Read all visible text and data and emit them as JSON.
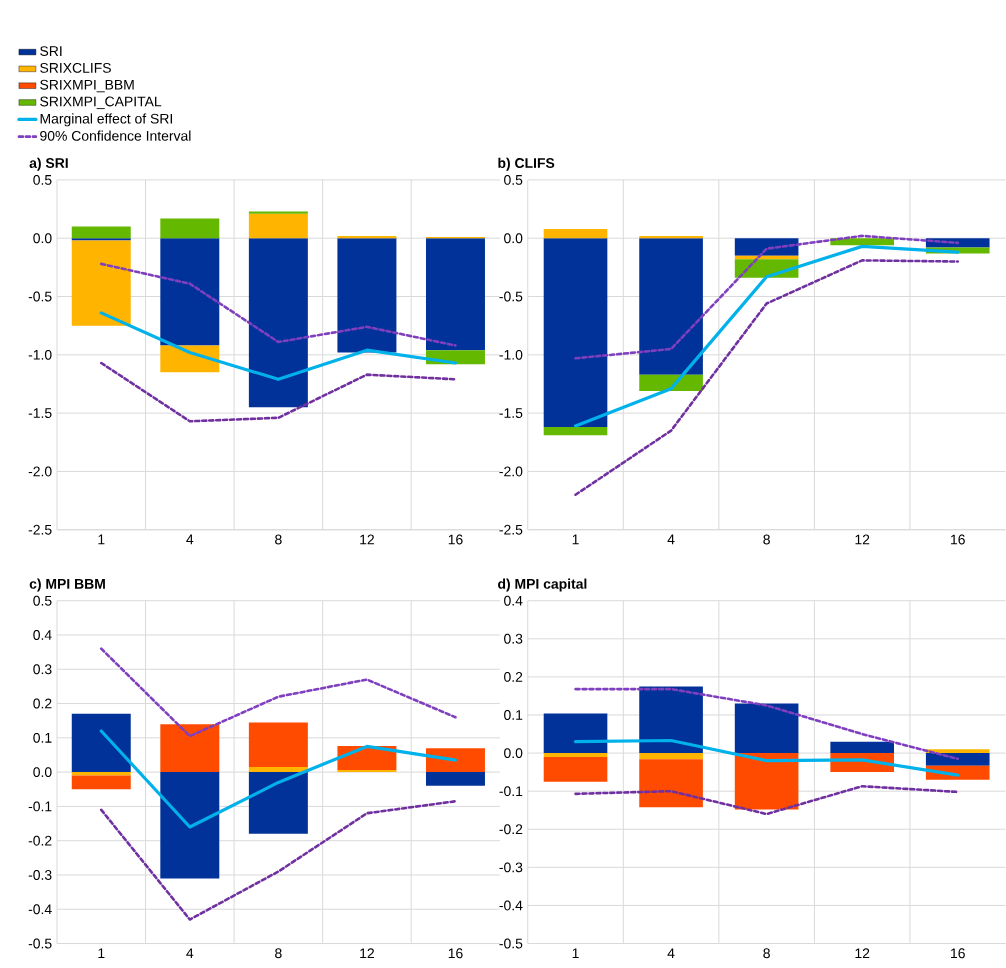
{
  "chart_data": [
    {
      "type": "bar",
      "stacked": true,
      "title": "a) SRI",
      "categories": [
        "1",
        "4",
        "8",
        "12",
        "16"
      ],
      "ylim": [
        -2.5,
        0.5
      ],
      "yticks": [
        {
          "value": 0.5,
          "label": "0.5"
        },
        {
          "value": 0,
          "label": "0.0"
        },
        {
          "value": -0.5,
          "label": "-0.5"
        },
        {
          "value": -1,
          "label": "-1.0"
        },
        {
          "value": -1.5,
          "label": "-1.5"
        },
        {
          "value": -2,
          "label": "-2.0"
        },
        {
          "value": -2.5,
          "label": "-2.5"
        }
      ],
      "grid": true,
      "legend": "top left",
      "series": [
        {
          "name": "SRI",
          "color": "#003299",
          "values": [
            -0.02,
            -0.92,
            -1.45,
            -0.98,
            -0.96
          ]
        },
        {
          "name": "SRIXCLIFS",
          "color": "#ffb400",
          "values": [
            -0.73,
            -0.23,
            0.21,
            0.02,
            0.01
          ]
        },
        {
          "name": "SRIXMPI_BBM",
          "color": "#ff4b00",
          "values": [
            0,
            0,
            0,
            0,
            0
          ]
        },
        {
          "name": "SRIXMPI_CAPITAL",
          "color": "#65b800",
          "values": [
            0.1,
            0.17,
            0.02,
            0,
            -0.12
          ]
        },
        {
          "name": "Marginal effect of SRI",
          "type": "line",
          "color": "#00b1ea",
          "values": [
            -0.64,
            -0.98,
            -1.21,
            -0.96,
            -1.07
          ]
        },
        {
          "name": "90% Confidence Interval",
          "type": "line",
          "line_style": "dashed",
          "color": "#7f3fbf",
          "values": [
            -0.22,
            -0.39,
            -0.89,
            -0.76,
            -0.92
          ]
        },
        {
          "type": "line",
          "line_style": "dashed",
          "color": "#7030a0",
          "values": [
            -1.07,
            -1.57,
            -1.54,
            -1.17,
            -1.21
          ]
        }
      ]
    },
    {
      "type": "bar",
      "stacked": true,
      "title": "b) CLIFS",
      "categories": [
        "1",
        "4",
        "8",
        "12",
        "16"
      ],
      "ylim": [
        -2.5,
        0.5
      ],
      "yticks": [
        {
          "value": 0.5,
          "label": "0.5"
        },
        {
          "value": 0,
          "label": "0.0"
        },
        {
          "value": -0.5,
          "label": "-0.5"
        },
        {
          "value": -1,
          "label": "-1.0"
        },
        {
          "value": -1.5,
          "label": "-1.5"
        },
        {
          "value": -2,
          "label": "-2.0"
        },
        {
          "value": -2.5,
          "label": "-2.5"
        }
      ],
      "grid": true,
      "series": [
        {
          "color": "#003299",
          "values": [
            -1.62,
            -1.17,
            -0.15,
            null,
            -0.08
          ]
        },
        {
          "color": "#ffb400",
          "values": [
            0.08,
            0.02,
            -0.03,
            0,
            0
          ]
        },
        {
          "color": "#65b800",
          "values": [
            -0.07,
            -0.14,
            -0.16,
            -0.06,
            -0.05
          ]
        },
        {
          "type": "line",
          "color": "#00b1ea",
          "values": [
            -1.61,
            -1.29,
            -0.33,
            -0.07,
            -0.12
          ]
        },
        {
          "type": "line",
          "line_style": "dashed",
          "color": "#7f3fbf",
          "values": [
            -1.03,
            -0.95,
            -0.09,
            0.02,
            -0.04
          ]
        },
        {
          "type": "line",
          "line_style": "dashed",
          "color": "#7030a0",
          "values": [
            -2.2,
            -1.65,
            -0.56,
            -0.19,
            -0.2
          ]
        }
      ]
    },
    {
      "type": "bar",
      "stacked": true,
      "title": "c) MPI BBM",
      "categories": [
        "1",
        "4",
        "8",
        "12",
        "16"
      ],
      "ylim": [
        -0.5,
        0.5
      ],
      "yticks": [
        {
          "value": 0.5,
          "label": "0.5"
        },
        {
          "value": 0.4,
          "label": "0.4"
        },
        {
          "value": 0.3,
          "label": "0.3"
        },
        {
          "value": 0.2,
          "label": "0.2"
        },
        {
          "value": 0.1,
          "label": "0.1"
        },
        {
          "value": 0,
          "label": "0.0"
        },
        {
          "value": -0.1,
          "label": "-0.1"
        },
        {
          "value": -0.2,
          "label": "-0.2"
        },
        {
          "value": -0.3,
          "label": "-0.3"
        },
        {
          "value": -0.4,
          "label": "-0.4"
        },
        {
          "value": -0.5,
          "label": "-0.5"
        }
      ],
      "grid": true,
      "series": [
        {
          "color": "#003299",
          "values": [
            0.17,
            -0.31,
            -0.18,
            0,
            -0.04
          ]
        },
        {
          "color": "#ffb400",
          "values": [
            -0.01,
            0,
            0.015,
            0.006,
            0
          ]
        },
        {
          "color": "#ff4b00",
          "values": [
            -0.04,
            0.14,
            0.13,
            0.07,
            0.07
          ]
        },
        {
          "type": "line",
          "color": "#00b1ea",
          "values": [
            0.12,
            -0.16,
            -0.03,
            0.075,
            0.035
          ]
        },
        {
          "type": "line",
          "line_style": "dashed",
          "color": "#7f3fbf",
          "values": [
            0.36,
            0.105,
            0.22,
            0.27,
            0.16
          ]
        },
        {
          "type": "line",
          "line_style": "dashed",
          "color": "#7030a0",
          "values": [
            -0.11,
            -0.43,
            -0.29,
            -0.12,
            -0.085
          ]
        }
      ]
    },
    {
      "type": "bar",
      "stacked": true,
      "title": "d) MPI capital",
      "categories": [
        "1",
        "4",
        "8",
        "12",
        "16"
      ],
      "ylim": [
        -0.5,
        0.4
      ],
      "yticks": [
        {
          "value": 0.4,
          "label": "0.4"
        },
        {
          "value": 0.3,
          "label": "0.3"
        },
        {
          "value": 0.2,
          "label": "0.2"
        },
        {
          "value": 0.1,
          "label": "0.1"
        },
        {
          "value": 0,
          "label": "0.0"
        },
        {
          "value": -0.1,
          "label": "-0.1"
        },
        {
          "value": -0.2,
          "label": "-0.2"
        },
        {
          "value": -0.3,
          "label": "-0.3"
        },
        {
          "value": -0.4,
          "label": "-0.4"
        },
        {
          "value": -0.5,
          "label": "-0.5"
        }
      ],
      "grid": true,
      "series": [
        {
          "color": "#003299",
          "values": [
            0.104,
            0.175,
            0.13,
            0.03,
            -0.033
          ]
        },
        {
          "color": "#ffb400",
          "values": [
            -0.01,
            -0.016,
            0,
            0,
            0.01
          ]
        },
        {
          "color": "#ff4b00",
          "values": [
            -0.065,
            -0.126,
            -0.148,
            -0.05,
            -0.037
          ]
        },
        {
          "type": "line",
          "color": "#00b1ea",
          "values": [
            0.03,
            0.033,
            -0.02,
            -0.018,
            -0.058
          ]
        },
        {
          "type": "line",
          "line_style": "dashed",
          "color": "#7f3fbf",
          "values": [
            0.168,
            0.168,
            0.125,
            0.05,
            -0.015
          ]
        },
        {
          "type": "line",
          "line_style": "dashed",
          "color": "#7030a0",
          "values": [
            -0.107,
            -0.1,
            -0.16,
            -0.087,
            -0.102
          ]
        }
      ]
    }
  ]
}
